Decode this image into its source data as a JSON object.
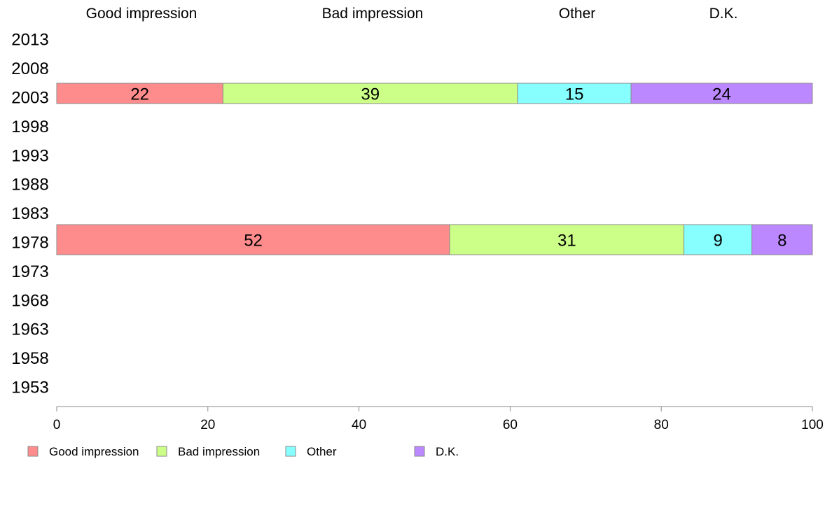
{
  "chart_data": {
    "type": "bar",
    "orientation": "horizontal",
    "stacked": true,
    "categories": [
      "2013",
      "2008",
      "2003",
      "1998",
      "1993",
      "1988",
      "1983",
      "1978",
      "1973",
      "1968",
      "1963",
      "1958",
      "1953"
    ],
    "series": [
      {
        "name": "Good impression",
        "color": "#ff8c8c",
        "values": [
          null,
          null,
          22,
          null,
          null,
          null,
          null,
          52,
          null,
          null,
          null,
          null,
          null
        ]
      },
      {
        "name": "Bad impression",
        "color": "#ccff88",
        "values": [
          null,
          null,
          39,
          null,
          null,
          null,
          null,
          31,
          null,
          null,
          null,
          null,
          null
        ]
      },
      {
        "name": "Other",
        "color": "#88ffff",
        "values": [
          null,
          null,
          15,
          null,
          null,
          null,
          null,
          9,
          null,
          null,
          null,
          null,
          null
        ]
      },
      {
        "name": "D.K.",
        "color": "#bb88ff",
        "values": [
          null,
          null,
          24,
          null,
          null,
          null,
          null,
          8,
          null,
          null,
          null,
          null,
          null
        ]
      }
    ],
    "xlim": [
      0,
      100
    ],
    "xticks": [
      "0",
      "20",
      "40",
      "60",
      "80",
      "100"
    ],
    "legend_position": "bottom-left",
    "grid": false,
    "title": "",
    "xlabel": "",
    "ylabel": ""
  }
}
